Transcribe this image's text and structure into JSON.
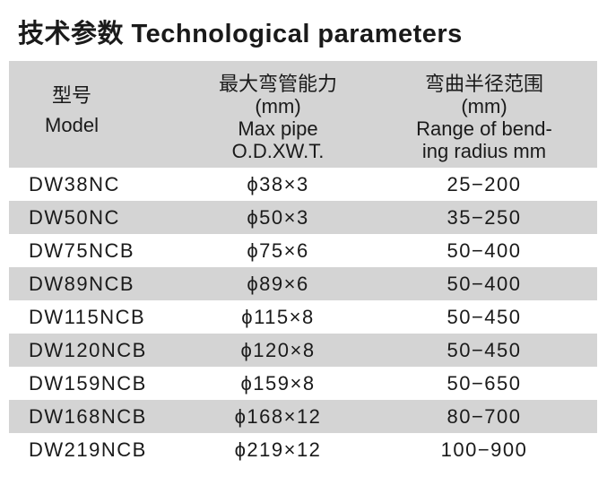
{
  "title": "技术参数 Technological parameters",
  "header": {
    "model": [
      "型号",
      "Model"
    ],
    "max_pipe": [
      "最大弯管能力",
      "(mm)",
      "Max pipe",
      "O.D.XW.T."
    ],
    "radius": [
      "弯曲半径范围",
      "(mm)",
      "Range of bend-",
      "ing radius mm"
    ]
  },
  "rows": [
    {
      "model": "DW38NC",
      "pipe": "ϕ38×3",
      "radius": "25−200"
    },
    {
      "model": "DW50NC",
      "pipe": "ϕ50×3",
      "radius": "35−250"
    },
    {
      "model": "DW75NCB",
      "pipe": "ϕ75×6",
      "radius": "50−400"
    },
    {
      "model": "DW89NCB",
      "pipe": "ϕ89×6",
      "radius": "50−400"
    },
    {
      "model": "DW115NCB",
      "pipe": "ϕ115×8",
      "radius": "50−450"
    },
    {
      "model": "DW120NCB",
      "pipe": "ϕ120×8",
      "radius": "50−450"
    },
    {
      "model": "DW159NCB",
      "pipe": "ϕ159×8",
      "radius": "50−650"
    },
    {
      "model": "DW168NCB",
      "pipe": "ϕ168×12",
      "radius": "80−700"
    },
    {
      "model": "DW219NCB",
      "pipe": "ϕ219×12",
      "radius": "100−900"
    }
  ],
  "colors": {
    "stripe": "#d4d4d4"
  }
}
